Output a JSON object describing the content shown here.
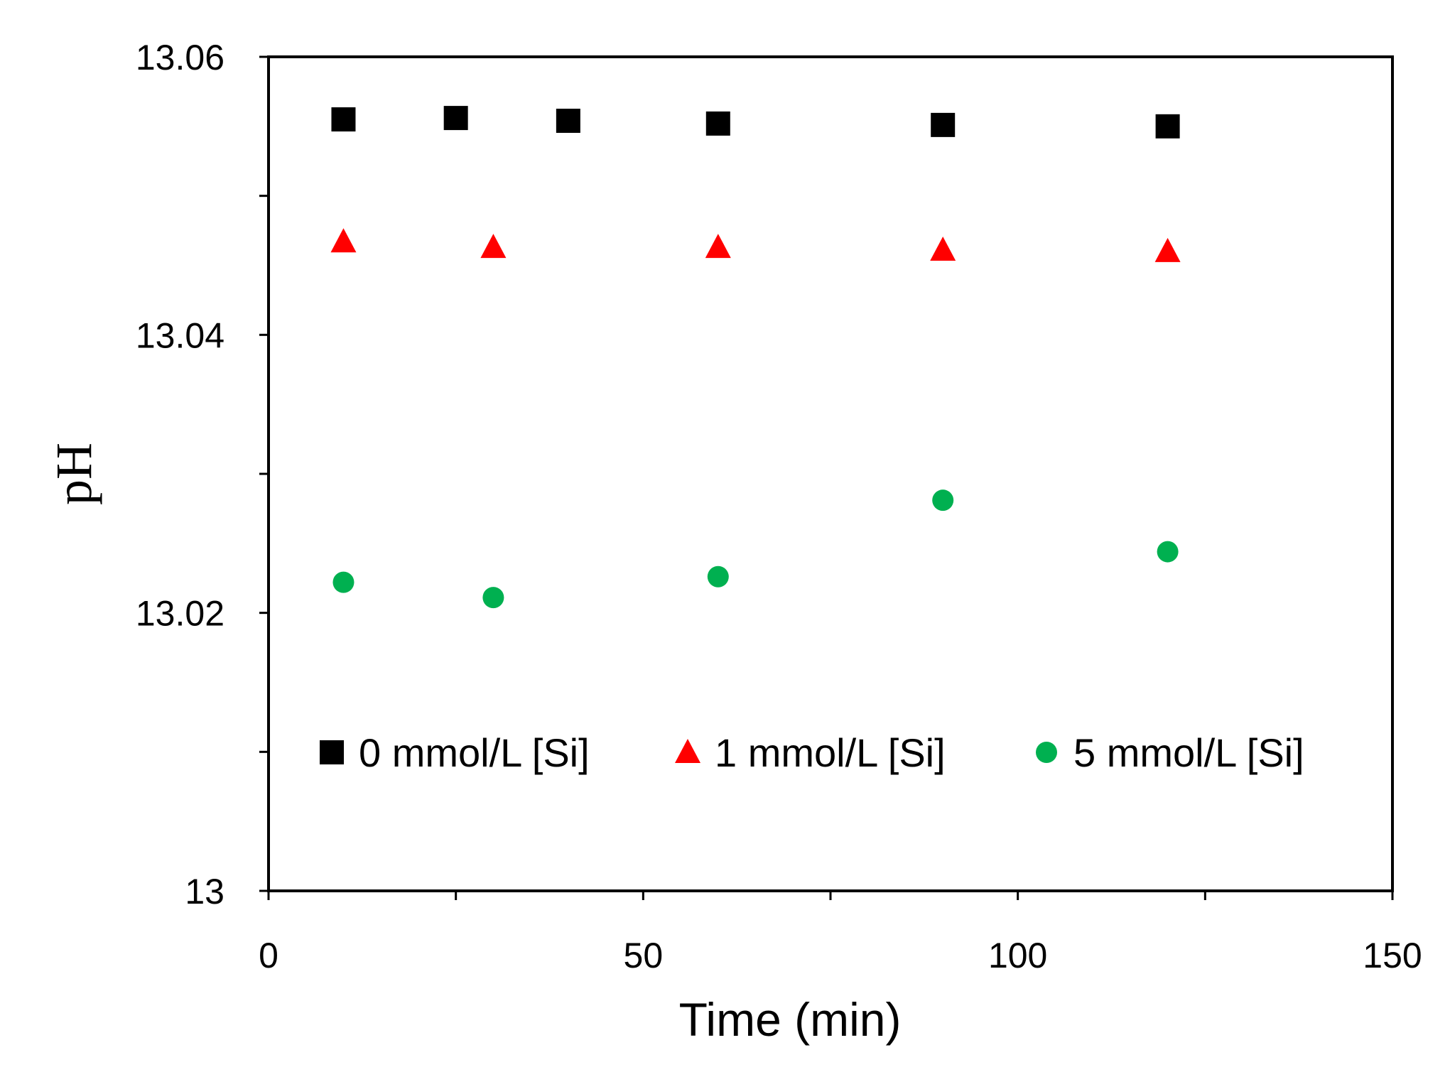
{
  "chart_data": {
    "type": "scatter",
    "title": "",
    "xlabel": "Time (min)",
    "ylabel": "pH",
    "xlim": [
      0,
      150
    ],
    "ylim": [
      13,
      13.06
    ],
    "x_ticks": [
      0,
      50,
      100,
      150
    ],
    "x_tick_labels": [
      "0",
      "50",
      "100",
      "150"
    ],
    "x_minor_ticks": [
      25,
      75,
      125
    ],
    "y_ticks": [
      13,
      13.02,
      13.04,
      13.06
    ],
    "y_tick_labels": [
      "13",
      "13.02",
      "13.04",
      "13.06"
    ],
    "y_minor_ticks": [
      13.01,
      13.03,
      13.05
    ],
    "grid": false,
    "legend_position": "bottom",
    "series": [
      {
        "name": "0 mmol/L [Si]",
        "marker": "square",
        "color": "#000000",
        "x": [
          10,
          25,
          40,
          60,
          90,
          120
        ],
        "y": [
          13.0555,
          13.0556,
          13.0554,
          13.0552,
          13.0551,
          13.055
        ]
      },
      {
        "name": "1 mmol/L [Si]",
        "marker": "triangle",
        "color": "#ff0000",
        "x": [
          10,
          30,
          60,
          90,
          120
        ],
        "y": [
          13.0467,
          13.0463,
          13.0463,
          13.0461,
          13.046
        ]
      },
      {
        "name": "5 mmol/L [Si]",
        "marker": "circle",
        "color": "#00b050",
        "x": [
          10,
          30,
          60,
          90,
          120
        ],
        "y": [
          13.0222,
          13.0211,
          13.0226,
          13.0281,
          13.0244
        ]
      }
    ]
  }
}
